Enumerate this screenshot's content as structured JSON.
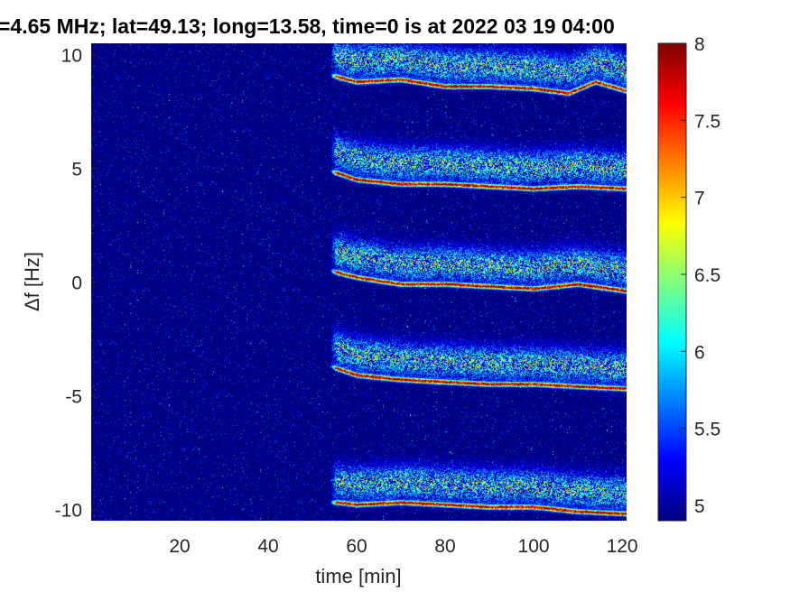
{
  "chart_data": {
    "type": "heatmap",
    "title": "=4.65 MHz;  lat=49.13; long=13.58, time=0 is at 2022 03 19 04:00",
    "xlabel": "time [min]",
    "ylabel": "Δf [Hz]",
    "xlim": [
      0,
      121
    ],
    "ylim": [
      -10.5,
      10.5
    ],
    "x_ticks": [
      20,
      40,
      60,
      80,
      100,
      120
    ],
    "y_ticks": [
      -10,
      -5,
      0,
      5,
      10
    ],
    "x_tick_labels": [
      "20",
      "40",
      "60",
      "80",
      "100",
      "120"
    ],
    "y_tick_labels": [
      "-10",
      "-5",
      "0",
      "5",
      "10"
    ],
    "colormap": "jet",
    "color_range": [
      4.9,
      8
    ],
    "colorbar_ticks": [
      5,
      5.5,
      6,
      6.5,
      7,
      7.5,
      8
    ],
    "colorbar_tick_labels": [
      "5",
      "5.5",
      "6",
      "6.5",
      "7",
      "7.5",
      "8"
    ],
    "background_level": 4.9,
    "signal_onset_min": 54,
    "traces": [
      {
        "center_hz": 10,
        "main_curve": [
          [
            54,
            9.1
          ],
          [
            60,
            8.8
          ],
          [
            70,
            8.9
          ],
          [
            80,
            8.6
          ],
          [
            90,
            8.6
          ],
          [
            100,
            8.5
          ],
          [
            108,
            8.3
          ],
          [
            114,
            8.8
          ],
          [
            121,
            8.4
          ]
        ]
      },
      {
        "center_hz": 5,
        "main_curve": [
          [
            54,
            4.9
          ],
          [
            60,
            4.5
          ],
          [
            70,
            4.3
          ],
          [
            80,
            4.3
          ],
          [
            90,
            4.2
          ],
          [
            100,
            4.1
          ],
          [
            110,
            4.2
          ],
          [
            121,
            4.1
          ]
        ]
      },
      {
        "center_hz": 0,
        "main_curve": [
          [
            54,
            0.5
          ],
          [
            60,
            0.2
          ],
          [
            70,
            -0.1
          ],
          [
            80,
            -0.1
          ],
          [
            90,
            -0.2
          ],
          [
            100,
            -0.3
          ],
          [
            110,
            -0.1
          ],
          [
            121,
            -0.4
          ]
        ]
      },
      {
        "center_hz": -5,
        "main_curve": [
          [
            54,
            -3.7
          ],
          [
            60,
            -4.1
          ],
          [
            70,
            -4.3
          ],
          [
            80,
            -4.4
          ],
          [
            90,
            -4.5
          ],
          [
            100,
            -4.5
          ],
          [
            110,
            -4.6
          ],
          [
            121,
            -4.7
          ]
        ]
      },
      {
        "center_hz": -10,
        "main_curve": [
          [
            56,
            -9.7
          ],
          [
            60,
            -9.8
          ],
          [
            70,
            -9.7
          ],
          [
            80,
            -9.8
          ],
          [
            90,
            -9.9
          ],
          [
            100,
            -9.9
          ],
          [
            110,
            -10.1
          ],
          [
            121,
            -10.2
          ]
        ]
      }
    ]
  }
}
